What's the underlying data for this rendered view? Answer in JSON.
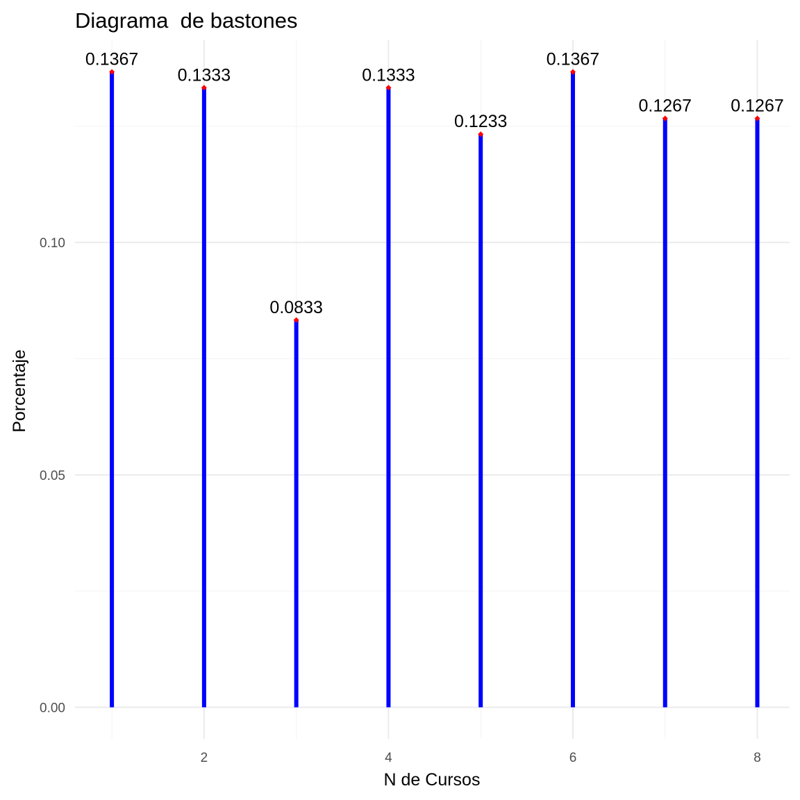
{
  "chart_data": {
    "type": "bar",
    "title": "Diagrama  de bastones",
    "xlabel": "N de Cursos",
    "ylabel": "Porcentaje",
    "x": [
      1,
      2,
      3,
      4,
      5,
      6,
      7,
      8
    ],
    "values": [
      0.1367,
      0.1333,
      0.0833,
      0.1333,
      0.1233,
      0.1367,
      0.1267,
      0.1267
    ],
    "labels": [
      "0.1367",
      "0.1333",
      "0.0833",
      "0.1333",
      "0.1233",
      "0.1367",
      "0.1267",
      "0.1267"
    ],
    "x_ticks": [
      2,
      4,
      6,
      8
    ],
    "x_tick_labels": [
      "2",
      "4",
      "6",
      "8"
    ],
    "y_ticks": [
      0.0,
      0.05,
      0.1
    ],
    "y_tick_labels": [
      "0.00",
      "0.05",
      "0.10"
    ],
    "xlim": [
      0.6,
      8.35
    ],
    "ylim": [
      -0.0068,
      0.1435
    ],
    "grid": true,
    "colors": {
      "stem": "#0000ff",
      "point": "#ff0000"
    }
  }
}
